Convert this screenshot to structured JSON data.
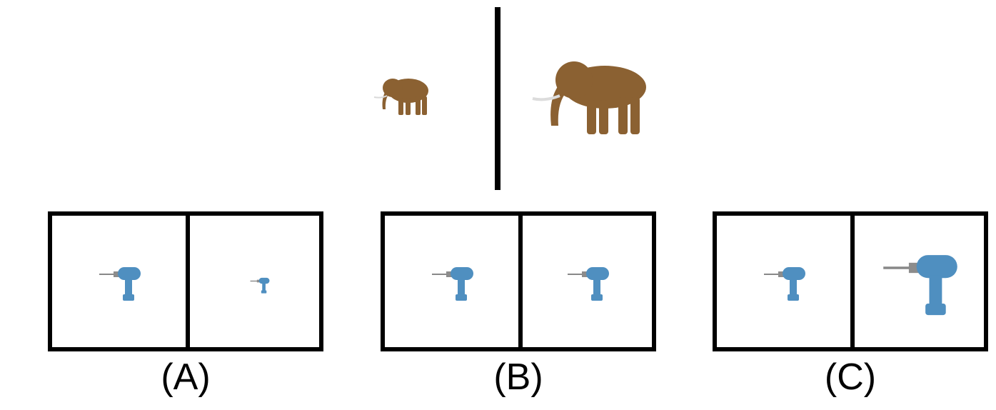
{
  "reference": {
    "left_image": "elephant-small",
    "right_image": "elephant-large"
  },
  "options": [
    {
      "label": "(A)",
      "left_drill": "medium",
      "right_drill": "small"
    },
    {
      "label": "(B)",
      "left_drill": "medium",
      "right_drill": "medium"
    },
    {
      "label": "(C)",
      "left_drill": "medium",
      "right_drill": "large"
    }
  ],
  "colors": {
    "elephant": "#8b6132",
    "drill_body": "#4f8fc0",
    "frame": "#000000"
  }
}
